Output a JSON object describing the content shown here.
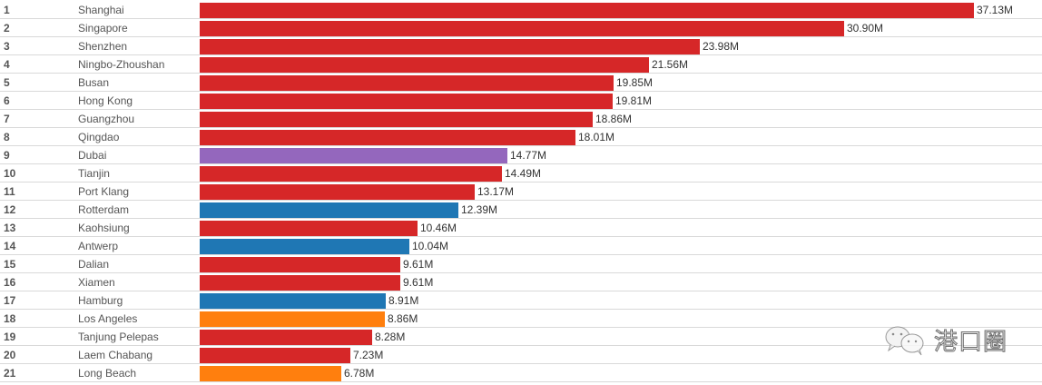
{
  "chart_data": {
    "type": "bar",
    "orientation": "horizontal",
    "title": "",
    "xlabel": "",
    "ylabel": "",
    "value_suffix": "M",
    "xlim": [
      0,
      37.13
    ],
    "grid": false,
    "legend": "none",
    "colors": {
      "china_asia": "#d62728",
      "middle_east": "#9467bd",
      "europe": "#1f77b4",
      "north_america": "#ff7f0e"
    },
    "rows": [
      {
        "rank": "1",
        "port": "Shanghai",
        "value": 37.13,
        "label": "37.13M",
        "group": "china_asia"
      },
      {
        "rank": "2",
        "port": "Singapore",
        "value": 30.9,
        "label": "30.90M",
        "group": "china_asia"
      },
      {
        "rank": "3",
        "port": "Shenzhen",
        "value": 23.98,
        "label": "23.98M",
        "group": "china_asia"
      },
      {
        "rank": "4",
        "port": "Ningbo-Zhoushan",
        "value": 21.56,
        "label": "21.56M",
        "group": "china_asia"
      },
      {
        "rank": "5",
        "port": "Busan",
        "value": 19.85,
        "label": "19.85M",
        "group": "china_asia"
      },
      {
        "rank": "6",
        "port": "Hong Kong",
        "value": 19.81,
        "label": "19.81M",
        "group": "china_asia"
      },
      {
        "rank": "7",
        "port": "Guangzhou",
        "value": 18.86,
        "label": "18.86M",
        "group": "china_asia"
      },
      {
        "rank": "8",
        "port": "Qingdao",
        "value": 18.01,
        "label": "18.01M",
        "group": "china_asia"
      },
      {
        "rank": "9",
        "port": "Dubai",
        "value": 14.77,
        "label": "14.77M",
        "group": "middle_east"
      },
      {
        "rank": "10",
        "port": "Tianjin",
        "value": 14.49,
        "label": "14.49M",
        "group": "china_asia"
      },
      {
        "rank": "11",
        "port": "Port Klang",
        "value": 13.17,
        "label": "13.17M",
        "group": "china_asia"
      },
      {
        "rank": "12",
        "port": "Rotterdam",
        "value": 12.39,
        "label": "12.39M",
        "group": "europe"
      },
      {
        "rank": "13",
        "port": "Kaohsiung",
        "value": 10.46,
        "label": "10.46M",
        "group": "china_asia"
      },
      {
        "rank": "14",
        "port": "Antwerp",
        "value": 10.04,
        "label": "10.04M",
        "group": "europe"
      },
      {
        "rank": "15",
        "port": "Dalian",
        "value": 9.61,
        "label": "9.61M",
        "group": "china_asia"
      },
      {
        "rank": "16",
        "port": "Xiamen",
        "value": 9.61,
        "label": "9.61M",
        "group": "china_asia"
      },
      {
        "rank": "17",
        "port": "Hamburg",
        "value": 8.91,
        "label": "8.91M",
        "group": "europe"
      },
      {
        "rank": "18",
        "port": "Los Angeles",
        "value": 8.86,
        "label": "8.86M",
        "group": "north_america"
      },
      {
        "rank": "19",
        "port": "Tanjung Pelepas",
        "value": 8.28,
        "label": "8.28M",
        "group": "china_asia"
      },
      {
        "rank": "20",
        "port": "Laem Chabang",
        "value": 7.23,
        "label": "7.23M",
        "group": "china_asia"
      },
      {
        "rank": "21",
        "port": "Long Beach",
        "value": 6.78,
        "label": "6.78M",
        "group": "north_america"
      }
    ]
  },
  "watermark": {
    "icon": "wechat-icon",
    "text": "港口圈"
  }
}
